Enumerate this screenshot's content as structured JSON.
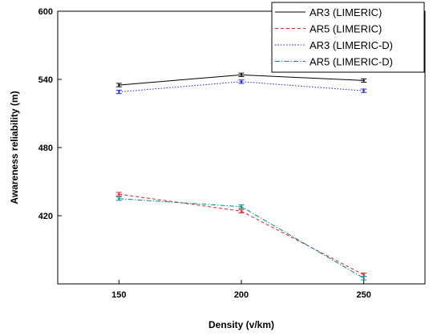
{
  "chart_data": {
    "type": "line",
    "xlabel": "Density (v/km)",
    "ylabel": "Awareness reliability (m)",
    "x": [
      150,
      200,
      250
    ],
    "xlim": [
      125,
      275
    ],
    "ylim": [
      360,
      600
    ],
    "xticks": [
      150,
      200,
      250
    ],
    "yticks": [
      420,
      480,
      540,
      600
    ],
    "legend_position": "top-right",
    "series": [
      {
        "name": "AR3 (LIMERIC)",
        "values": [
          535,
          544,
          539
        ],
        "errors": [
          1.5,
          1.5,
          1.5
        ],
        "color": "#000000",
        "dash": "solid"
      },
      {
        "name": "AR5 (LIMERIC)",
        "values": [
          439,
          424,
          368
        ],
        "errors": [
          1.5,
          1.5,
          1.5
        ],
        "color": "#e02020",
        "dash": "dashed"
      },
      {
        "name": "AR3 (LIMERIC-D)",
        "values": [
          529,
          538,
          530
        ],
        "errors": [
          1.5,
          1.5,
          1.5
        ],
        "color": "#2020d0",
        "dash": "dotted"
      },
      {
        "name": "AR5 (LIMERIC-D)",
        "values": [
          435,
          428,
          365
        ],
        "errors": [
          1.5,
          1.5,
          1.5
        ],
        "color": "#008b8b",
        "dash": "dashdot"
      }
    ]
  }
}
